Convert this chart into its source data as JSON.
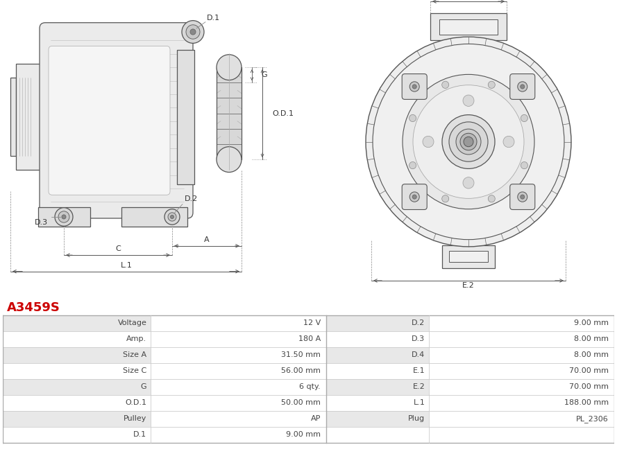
{
  "title": "A3459S",
  "title_color": "#cc0000",
  "bg_color": "#ffffff",
  "lc": "#555555",
  "lc2": "#888888",
  "fc_light": "#f0f0f0",
  "fc_mid": "#e0e0e0",
  "fc_dark": "#cccccc",
  "table_rows": [
    [
      "Voltage",
      "12 V",
      "D.2",
      "9.00 mm"
    ],
    [
      "Amp.",
      "180 A",
      "D.3",
      "8.00 mm"
    ],
    [
      "Size A",
      "31.50 mm",
      "D.4",
      "8.00 mm"
    ],
    [
      "Size C",
      "56.00 mm",
      "E.1",
      "70.00 mm"
    ],
    [
      "G",
      "6 qty.",
      "E.2",
      "70.00 mm"
    ],
    [
      "O.D.1",
      "50.00 mm",
      "L.1",
      "188.00 mm"
    ],
    [
      "Pulley",
      "AP",
      "Plug",
      "PL_2306"
    ],
    [
      "D.1",
      "9.00 mm",
      "",
      ""
    ]
  ],
  "col_bg_odd": "#e8e8e8",
  "col_bg_even": "#ffffff"
}
